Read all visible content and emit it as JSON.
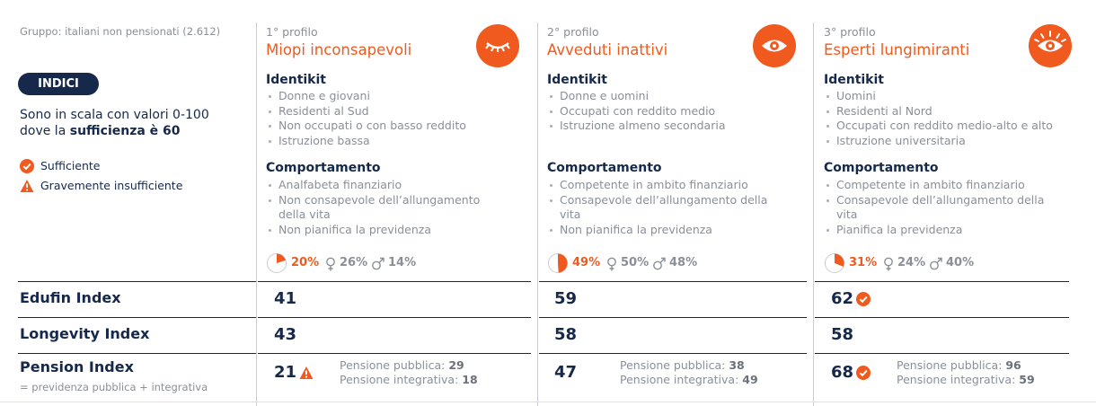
{
  "group": "Gruppo: italiani non pensionati (2.612)",
  "badge": "INDICI",
  "scale_note": {
    "text": "Sono in scala con valori 0-100 dove la ",
    "bold": "sufficienza è 60"
  },
  "legend": [
    {
      "label": "Sufficiente",
      "status": "ok"
    },
    {
      "label": "Gravemente insufficiente",
      "status": "warn"
    }
  ],
  "profiles": [
    {
      "number": "1° profilo",
      "name": "Miopi inconsapevoli",
      "icon": "closed-eye",
      "identikit_title": "Identikit",
      "identikit": [
        "Donne e giovani",
        "Residenti al Sud",
        "Non occupati o con basso reddito",
        "Istruzione bassa"
      ],
      "behavior_title": "Comportamento",
      "behavior": [
        "Analfabeta finanziario",
        "Non consapevole dell’allungamento della vita",
        "Non pianifica la previdenza"
      ],
      "share": {
        "value": 20,
        "label": "20%"
      },
      "female": "26%",
      "male": "14%"
    },
    {
      "number": "2° profilo",
      "name": "Avveduti inattivi",
      "icon": "eye",
      "identikit_title": "Identikit",
      "identikit": [
        "Donne e uomini",
        "Occupati con reddito medio",
        "Istruzione almeno secondaria"
      ],
      "behavior_title": "Comportamento",
      "behavior": [
        "Competente in ambito finanziario",
        "Consapevole dell’allungamento della vita",
        "Non pianifica la previdenza"
      ],
      "share": {
        "value": 49,
        "label": "49%"
      },
      "female": "50%",
      "male": "48%"
    },
    {
      "number": "3° profilo",
      "name": "Esperti lungimiranti",
      "icon": "eye-rays",
      "identikit_title": "Identikit",
      "identikit": [
        "Uomini",
        "Residenti al Nord",
        "Occupati con reddito medio-alto e alto",
        "Istruzione universitaria"
      ],
      "behavior_title": "Comportamento",
      "behavior": [
        "Competente in ambito finanziario",
        "Consapevole dell’allungamento della vita",
        "Pianifica la previdenza"
      ],
      "share": {
        "value": 31,
        "label": "31%"
      },
      "female": "24%",
      "male": "40%"
    }
  ],
  "indices": [
    {
      "name": "Edufin Index",
      "values": [
        "41",
        "59",
        "62"
      ],
      "status": [
        null,
        null,
        "ok"
      ]
    },
    {
      "name": "Longevity Index",
      "values": [
        "43",
        "58",
        "58"
      ],
      "status": [
        null,
        null,
        null
      ]
    },
    {
      "name": "Pension Index",
      "subtitle": "= previdenza pubblica + integrativa",
      "values": [
        "21",
        "47",
        "68"
      ],
      "status": [
        "warn",
        null,
        "ok"
      ],
      "details": [
        [
          {
            "label": "Pensione pubblica:",
            "value": "29"
          },
          {
            "label": "Pensione integrativa:",
            "value": "18"
          }
        ],
        [
          {
            "label": "Pensione pubblica:",
            "value": "38"
          },
          {
            "label": "Pensione integrativa:",
            "value": "49"
          }
        ],
        [
          {
            "label": "Pensione pubblica:",
            "value": "96"
          },
          {
            "label": "Pensione integrativa:",
            "value": "59"
          }
        ]
      ]
    }
  ]
}
